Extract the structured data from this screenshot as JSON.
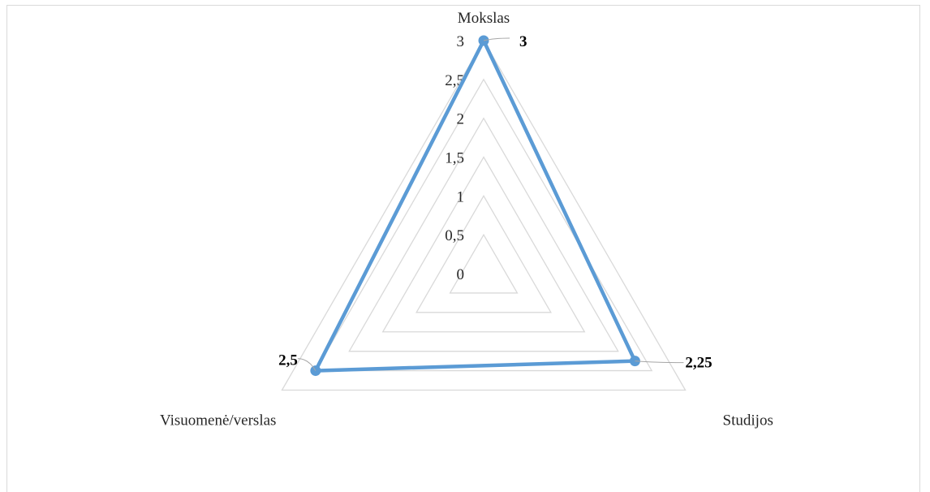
{
  "chart_data": {
    "type": "radar",
    "categories": [
      "Mokslas",
      "Studijos",
      "Visuomenė/verslas"
    ],
    "series": [
      {
        "values": [
          3,
          2.25,
          2.5
        ],
        "color": "#5b9bd5"
      }
    ],
    "data_labels": [
      "3",
      "2,25",
      "2,5"
    ],
    "r_ticks": [
      "0",
      "0,5",
      "1",
      "1,5",
      "2",
      "2,5",
      "3"
    ],
    "r_range": [
      0,
      3
    ],
    "tick_step": 0.5,
    "grid": true,
    "legend": "none",
    "grid_color": "#d9d9d9"
  }
}
